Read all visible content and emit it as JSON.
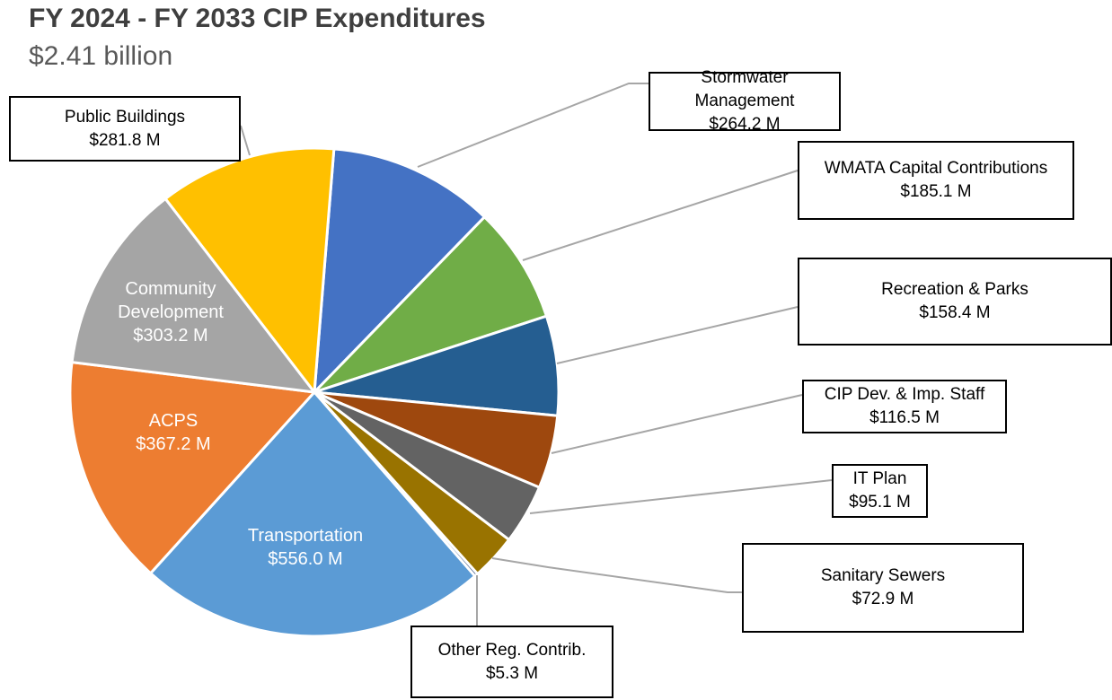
{
  "chart_data": {
    "type": "pie",
    "title": "FY 2024 - FY 2033 CIP Expenditures",
    "subtitle": "$2.41 billion",
    "categories": [
      "Stormwater Management",
      "WMATA Capital Contributions",
      "Recreation & Parks",
      "CIP Dev. & Imp. Staff",
      "IT Plan",
      "Sanitary Sewers",
      "Other Reg. Contrib.",
      "Transportation",
      "ACPS",
      "Community Development",
      "Public Buildings"
    ],
    "values": [
      264.2,
      185.1,
      158.4,
      116.5,
      95.1,
      72.9,
      5.3,
      556.0,
      367.2,
      303.2,
      281.8
    ],
    "value_labels": [
      "$264.2 M",
      "$185.1 M",
      "$158.4 M",
      "$116.5 M",
      "$95.1 M",
      "$72.9 M",
      "$5.3 M",
      "$556.0 M",
      "$367.2 M",
      "$303.2 M",
      "$281.8 M"
    ],
    "colors": [
      "#4472c4",
      "#70ad47",
      "#255e91",
      "#9e480e",
      "#636363",
      "#997300",
      "#264478",
      "#5b9bd5",
      "#ed7d31",
      "#a5a5a5",
      "#ffc000"
    ]
  }
}
